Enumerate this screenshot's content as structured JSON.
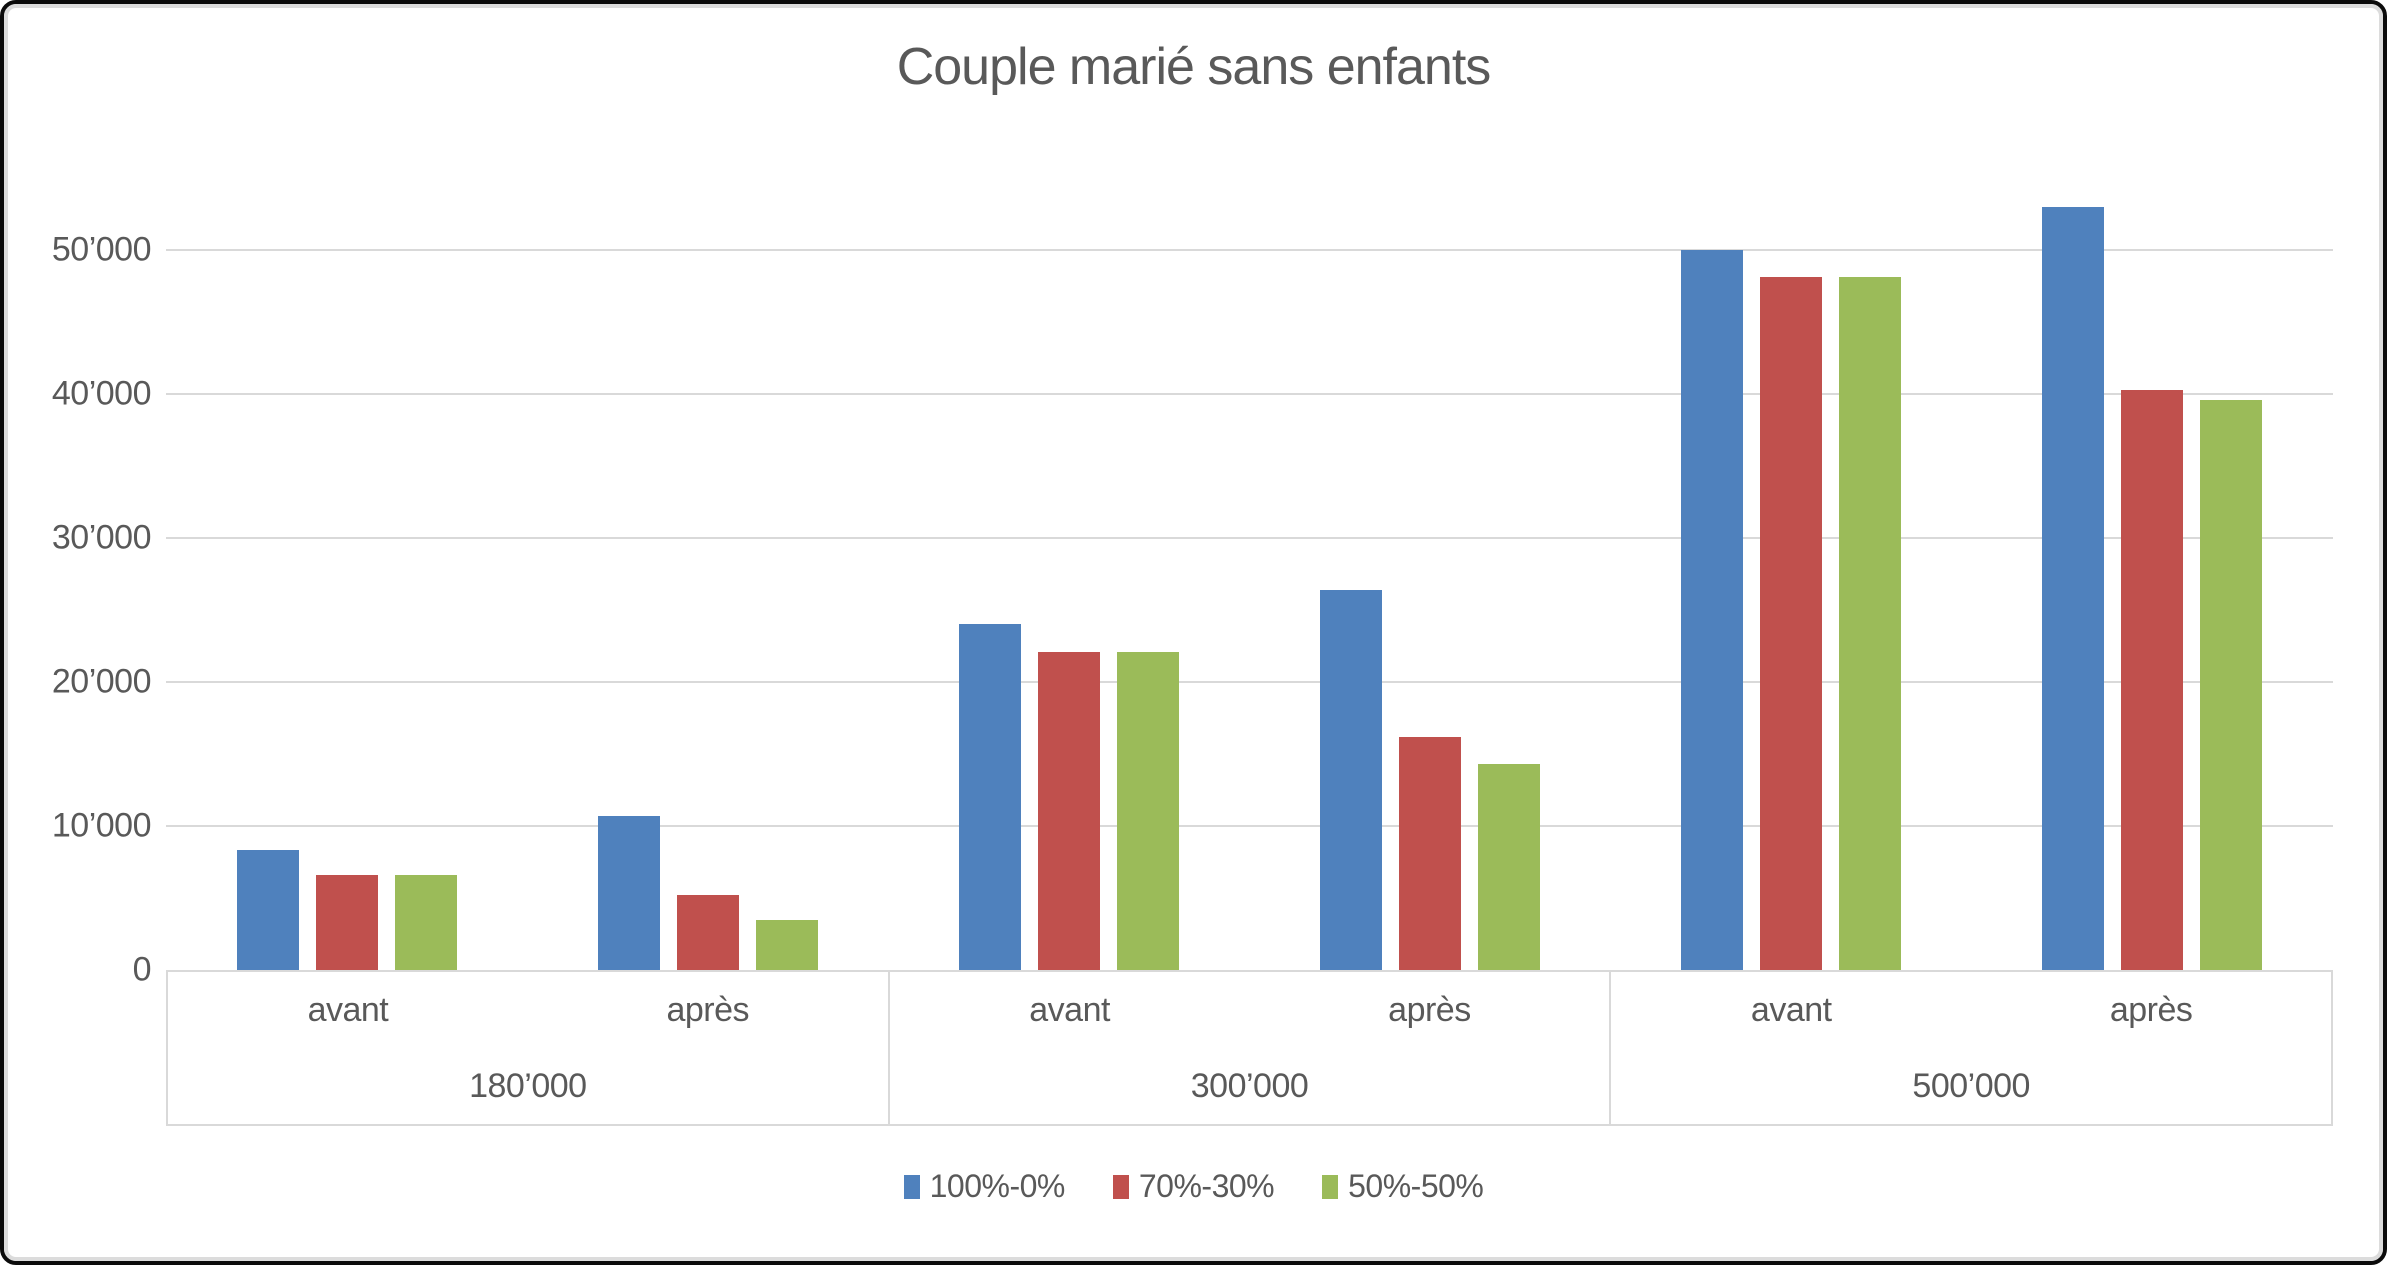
{
  "title": "Couple marié sans enfants",
  "legend": {
    "items": [
      {
        "label": "100%-0%",
        "color": "#4F81BD"
      },
      {
        "label": "70%-30%",
        "color": "#C0504D"
      },
      {
        "label": "50%-50%",
        "color": "#9BBB59"
      }
    ]
  },
  "y_axis": {
    "tick_labels": [
      "0",
      "10’000",
      "20’000",
      "30’000",
      "40’000",
      "50’000"
    ],
    "tick_values": [
      0,
      10000,
      20000,
      30000,
      40000,
      50000
    ]
  },
  "x_axis": {
    "groups": [
      {
        "label": "180’000",
        "slots": [
          "avant",
          "après"
        ]
      },
      {
        "label": "300’000",
        "slots": [
          "avant",
          "après"
        ]
      },
      {
        "label": "500’000",
        "slots": [
          "avant",
          "après"
        ]
      }
    ]
  },
  "chart_data": {
    "type": "bar",
    "title": "Couple marié sans enfants",
    "categories": [
      {
        "group": "180’000",
        "slot": "avant"
      },
      {
        "group": "180’000",
        "slot": "après"
      },
      {
        "group": "300’000",
        "slot": "avant"
      },
      {
        "group": "300’000",
        "slot": "après"
      },
      {
        "group": "500’000",
        "slot": "avant"
      },
      {
        "group": "500’000",
        "slot": "après"
      }
    ],
    "series": [
      {
        "name": "100%-0%",
        "color": "#4F81BD",
        "values": [
          8300,
          10700,
          24000,
          26400,
          50000,
          53000
        ]
      },
      {
        "name": "70%-30%",
        "color": "#C0504D",
        "values": [
          6600,
          5200,
          22100,
          16200,
          48100,
          40300
        ]
      },
      {
        "name": "50%-50%",
        "color": "#9BBB59",
        "values": [
          6600,
          3500,
          22100,
          14300,
          48100,
          39600
        ]
      }
    ],
    "xlabel": "",
    "ylabel": "",
    "ylim": [
      0,
      57000
    ],
    "grid": true,
    "legend_position": "bottom",
    "gridline_color": "#D9D9D9",
    "text_color": "#595959"
  }
}
